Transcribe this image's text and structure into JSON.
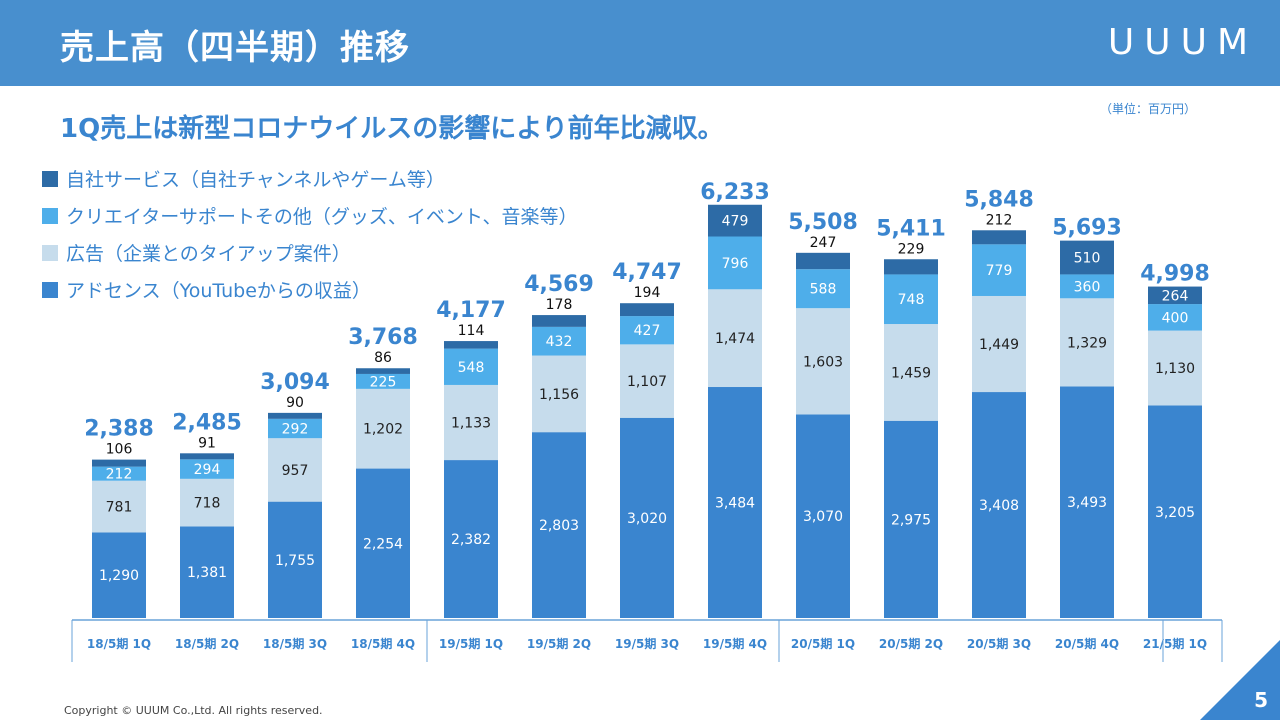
{
  "header": {
    "title": "売上高（四半期）推移",
    "logo": "UUUM"
  },
  "subtitle": "1Q売上は新型コロナウイルスの影響により前年比減収。",
  "unit": "（単位：百万円）",
  "footer": {
    "copyright": "Copyright © UUUM Co.,Ltd. All rights reserved.",
    "page": "5"
  },
  "chart_data": {
    "type": "bar",
    "stacked": true,
    "title": "売上高（四半期）推移",
    "ylabel": "百万円",
    "legend_position": "top-left",
    "categories": [
      "18/5期 1Q",
      "18/5期 2Q",
      "18/5期 3Q",
      "18/5期 4Q",
      "19/5期 1Q",
      "19/5期 2Q",
      "19/5期 3Q",
      "19/5期 4Q",
      "20/5期 1Q",
      "20/5期 2Q",
      "20/5期 3Q",
      "20/5期 4Q",
      "21/5期 1Q"
    ],
    "series": [
      {
        "name": "アドセンス（YouTubeからの収益）",
        "color": "#3a85cf",
        "values": [
          1290,
          1381,
          1755,
          2254,
          2382,
          2803,
          3020,
          3484,
          3070,
          2975,
          3408,
          3493,
          3205
        ]
      },
      {
        "name": "広告（企業とのタイアップ案件）",
        "color": "#c6dcec",
        "values": [
          781,
          718,
          957,
          1202,
          1133,
          1156,
          1107,
          1474,
          1603,
          1459,
          1449,
          1329,
          1130
        ]
      },
      {
        "name": "クリエイターサポートその他（グッズ、イベント、音楽等）",
        "color": "#4eaeea",
        "values": [
          212,
          294,
          292,
          225,
          548,
          432,
          427,
          796,
          588,
          748,
          779,
          360,
          400
        ]
      },
      {
        "name": "自社サービス（自社チャンネルやゲーム等）",
        "color": "#2d6ba6",
        "values": [
          106,
          91,
          90,
          86,
          114,
          178,
          194,
          479,
          247,
          229,
          212,
          510,
          264
        ]
      }
    ],
    "totals": [
      2388,
      2485,
      3094,
      3768,
      4177,
      4569,
      4747,
      6233,
      5508,
      5411,
      5848,
      5693,
      4998
    ],
    "legend_order": [
      3,
      2,
      1,
      0
    ]
  }
}
